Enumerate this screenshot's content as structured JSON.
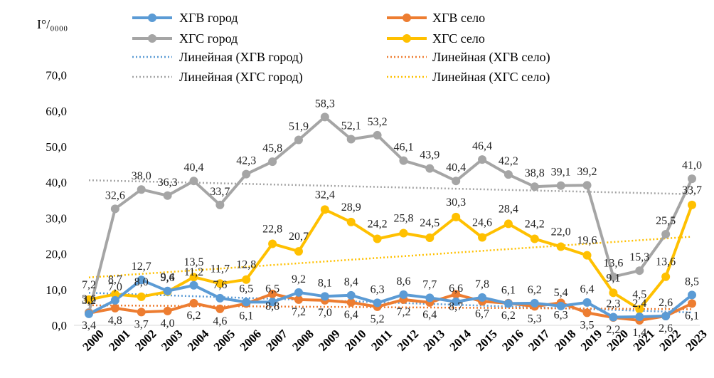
{
  "chart_data": {
    "type": "line",
    "unit_label": "I°/₀₀₀₀",
    "x": [
      "2000",
      "2001",
      "2002",
      "2003",
      "2004",
      "2005",
      "2006",
      "2007",
      "2008",
      "2009",
      "2010",
      "2011",
      "2012",
      "2013",
      "2014",
      "2015",
      "2016",
      "2017",
      "2018",
      "2019",
      "2020",
      "2021",
      "2022",
      "2023"
    ],
    "ylim": [
      0,
      70
    ],
    "yticks": [
      "0,0",
      "10,0",
      "20,0",
      "30,0",
      "40,0",
      "50,0",
      "60,0",
      "70,0"
    ],
    "grid": false,
    "legend_position": "top",
    "series": [
      {
        "name": "ХГВ город",
        "color": "#5b9bd5",
        "marker": true,
        "values": [
          3.2,
          7.0,
          12.7,
          9.6,
          11.2,
          7.6,
          6.5,
          6.5,
          9.2,
          8.1,
          8.4,
          6.3,
          8.6,
          7.7,
          6.6,
          7.8,
          6.1,
          6.2,
          5.4,
          6.4,
          2.3,
          2.4,
          2.6,
          8.5
        ],
        "labels": [
          "3,2",
          "7,0",
          "12,7",
          "9,6",
          "11,2",
          "7,6",
          "6,5",
          "6,5",
          "9,2",
          "8,1",
          "8,4",
          "6,3",
          "8,6",
          "7,7",
          "6,6",
          "7,8",
          "6,1",
          "6,2",
          "5,4",
          "6,4",
          "2,3",
          "2,4",
          "2,6",
          "8,5"
        ]
      },
      {
        "name": "ХГВ село",
        "color": "#ed7d31",
        "marker": true,
        "values": [
          3.4,
          4.8,
          3.7,
          4.0,
          6.2,
          4.6,
          6.1,
          8.8,
          7.2,
          7.0,
          6.4,
          5.2,
          7.2,
          6.4,
          8.7,
          6.7,
          6.2,
          5.3,
          6.3,
          3.5,
          2.2,
          1.4,
          2.6,
          6.1
        ],
        "labels": [
          "3,4",
          "4,8",
          "3,7",
          "4,0",
          "6,2",
          "4,6",
          "6,1",
          "8,8",
          "7,2",
          "7,0",
          "6,4",
          "5,2",
          "7,2",
          "6,4",
          "8,7",
          "6,7",
          "6,2",
          "5,3",
          "6,3",
          "3,5",
          "2,2",
          "1,4",
          "2,6",
          "6,1"
        ]
      },
      {
        "name": "ХГС город",
        "color": "#a5a5a5",
        "marker": true,
        "values": [
          3.6,
          32.6,
          38.0,
          36.3,
          40.4,
          33.7,
          42.3,
          45.8,
          51.9,
          58.3,
          52.1,
          53.2,
          46.1,
          43.9,
          40.4,
          46.4,
          42.2,
          38.8,
          39.1,
          39.2,
          13.6,
          15.3,
          25.5,
          41.0
        ],
        "labels": [
          "3,6",
          "32,6",
          "38,0",
          "36,3",
          "40,4",
          "33,7",
          "42,3",
          "45,8",
          "51,9",
          "58,3",
          "52,1",
          "53,2",
          "46,1",
          "43,9",
          "40,4",
          "46,4",
          "42,2",
          "38,8",
          "39,1",
          "39,2",
          "13,6",
          "15,3",
          "25,5",
          "41,0"
        ]
      },
      {
        "name": "ХГС село",
        "color": "#ffc000",
        "marker": true,
        "values": [
          7.2,
          8.7,
          8.0,
          9.4,
          13.5,
          11.7,
          12.8,
          22.8,
          20.7,
          32.4,
          28.9,
          24.2,
          25.8,
          24.5,
          30.3,
          24.6,
          28.4,
          24.2,
          22.0,
          19.6,
          9.1,
          4.5,
          13.6,
          33.7
        ],
        "labels": [
          "7,2",
          "8,7",
          "8,0",
          "9,4",
          "13,5",
          "11,7",
          "12,8",
          "22,8",
          "20,7",
          "32,4",
          "28,9",
          "24,2",
          "25,8",
          "24,5",
          "30,3",
          "24,6",
          "28,4",
          "24,2",
          "22,0",
          "19,6",
          "9,1",
          "4,5",
          "13,6",
          "33,7"
        ]
      }
    ],
    "trendlines": [
      {
        "name": "Линейная (ХГВ город)",
        "color": "#5b9bd5",
        "start": 9.1,
        "end": 3.6
      },
      {
        "name": "Линейная (ХГВ село)",
        "color": "#ed7d31",
        "start": 5.6,
        "end": 4.5
      },
      {
        "name": "Линейная (ХГС город)",
        "color": "#a5a5a5",
        "start": 40.6,
        "end": 36.7
      },
      {
        "name": "Линейная (ХГС село)",
        "color": "#ffc000",
        "start": 13.4,
        "end": 24.8
      }
    ]
  }
}
